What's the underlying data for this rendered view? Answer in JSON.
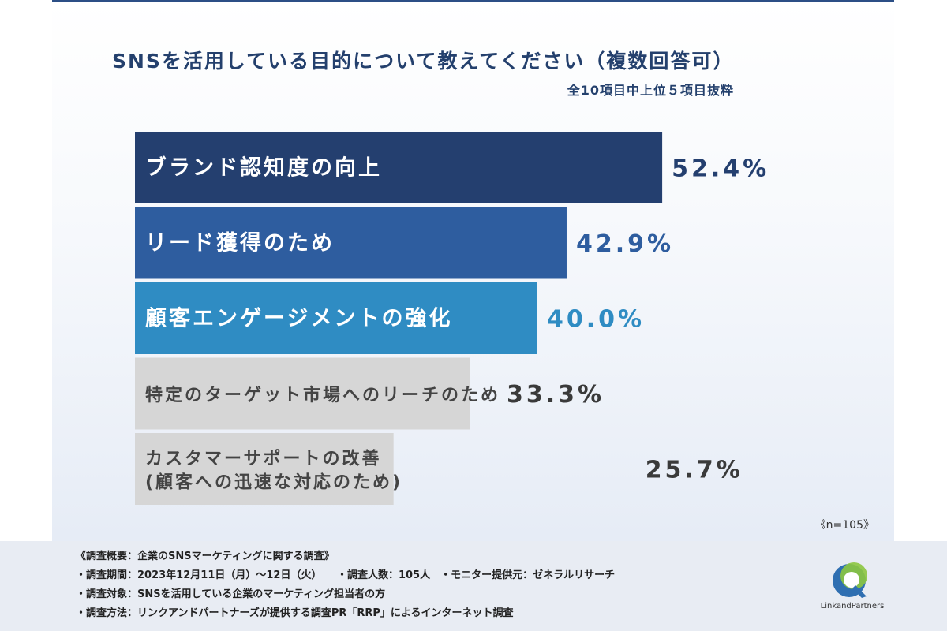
{
  "header": {
    "title": "SNSを活用している目的について教えてください（複数回答可）",
    "subtitle": "全10項目中上位５項目抜粋"
  },
  "sample_size": "《n=105》",
  "colors": {
    "bar_1": "#243f6f",
    "bar_2": "#2e5d9f",
    "bar_3": "#2f8cc3",
    "bar_gray": "#d6d6d6",
    "value_1": "#243f6f",
    "value_2": "#2e5d9f",
    "value_3": "#2f8cc3",
    "value_gray": "#3a3a3a"
  },
  "chart_data": {
    "type": "bar",
    "orientation": "horizontal",
    "categories": [
      "ブランド認知度の向上",
      "リード獲得のため",
      "顧客エンゲージメントの強化",
      "特定のターゲット市場へのリーチのため",
      "カスタマーサポートの改善\n(顧客への迅速な対応のため)"
    ],
    "values": [
      52.4,
      42.9,
      40.0,
      33.3,
      25.7
    ],
    "value_labels": [
      "52.4%",
      "42.9%",
      "40.0%",
      "33.3%",
      "25.7%"
    ],
    "grid": false
  },
  "footer": {
    "notes": [
      "《調査概要：企業のSNSマーケティングに関する調査》",
      "・調査期間：2023年12月11日（月）～12日（火）　　・調査人数：105人　・モニター提供元：ゼネラルリサーチ",
      "・調査対象：SNSを活用している企業のマーケティング担当者の方",
      "・調査方法：リンクアンドパートナーズが提供する調査PR「RRP」によるインターネット調査"
    ],
    "logo_text": "LinkandPartners"
  }
}
